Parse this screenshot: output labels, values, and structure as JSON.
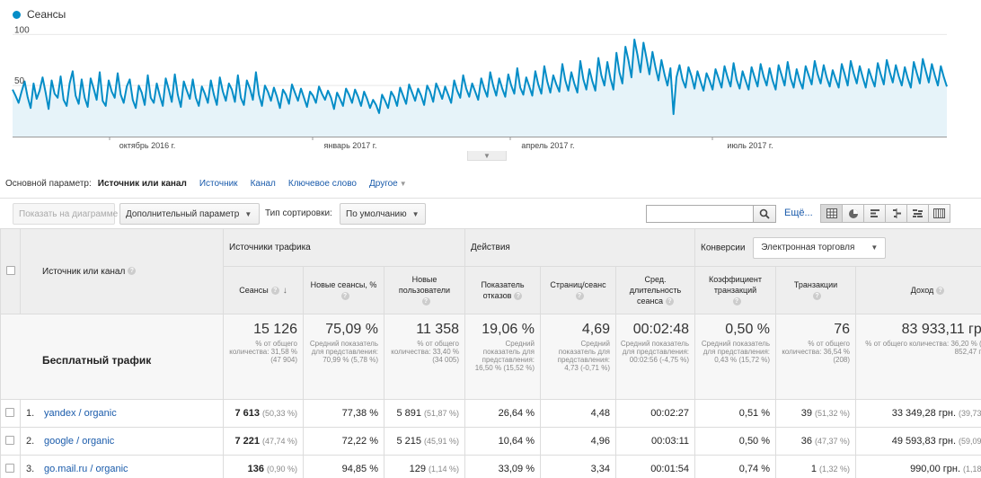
{
  "chart": {
    "legend": "Сеансы",
    "y_ticks": [
      "100",
      "50"
    ],
    "x_labels": [
      "октябрь 2016 г.",
      "январь 2017 г.",
      "апрель 2017 г.",
      "июль 2017 г."
    ],
    "colors": {
      "line": "#058dc7",
      "fill": "#e6f3f9"
    }
  },
  "chart_data": {
    "type": "area",
    "series": [
      {
        "name": "Сеансы",
        "values": [
          46,
          40,
          33,
          44,
          54,
          39,
          28,
          52,
          37,
          45,
          58,
          43,
          27,
          55,
          42,
          38,
          59,
          36,
          30,
          52,
          64,
          40,
          32,
          56,
          38,
          29,
          57,
          47,
          36,
          63,
          35,
          30,
          55,
          44,
          38,
          62,
          41,
          33,
          49,
          56,
          36,
          28,
          50,
          43,
          31,
          60,
          38,
          33,
          52,
          40,
          30,
          57,
          46,
          34,
          61,
          41,
          29,
          54,
          45,
          37,
          56,
          38,
          30,
          49,
          42,
          33,
          55,
          41,
          31,
          58,
          44,
          35,
          52,
          46,
          34,
          60,
          38,
          31,
          55,
          47,
          36,
          63,
          41,
          30,
          50,
          44,
          35,
          48,
          39,
          28,
          46,
          41,
          32,
          51,
          43,
          35,
          47,
          38,
          29,
          44,
          40,
          33,
          49,
          42,
          36,
          45,
          38,
          27,
          43,
          37,
          30,
          47,
          41,
          33,
          46,
          39,
          30,
          44,
          37,
          28,
          36,
          31,
          23,
          41,
          35,
          28,
          44,
          39,
          30,
          48,
          40,
          32,
          51,
          43,
          35,
          47,
          40,
          31,
          50,
          44,
          34,
          52,
          45,
          37,
          49,
          41,
          33,
          55,
          45,
          38,
          60,
          47,
          39,
          52,
          44,
          36,
          57,
          47,
          39,
          63,
          50,
          40,
          57,
          47,
          39,
          61,
          50,
          42,
          67,
          48,
          41,
          58,
          49,
          40,
          64,
          51,
          42,
          69,
          54,
          43,
          60,
          51,
          44,
          71,
          55,
          45,
          63,
          52,
          43,
          74,
          56,
          46,
          66,
          54,
          45,
          77,
          60,
          50,
          73,
          57,
          46,
          82,
          63,
          52,
          88,
          75,
          58,
          95,
          80,
          63,
          92,
          77,
          61,
          83,
          68,
          55,
          75,
          61,
          50,
          67,
          22,
          58,
          70,
          56,
          48,
          68,
          59,
          47,
          64,
          54,
          45,
          62,
          55,
          46,
          66,
          57,
          48,
          69,
          58,
          49,
          72,
          56,
          47,
          64,
          55,
          46,
          68,
          58,
          49,
          71,
          59,
          50,
          67,
          55,
          46,
          70,
          60,
          50,
          73,
          57,
          48,
          66,
          55,
          47,
          69,
          60,
          51,
          74,
          61,
          52,
          70,
          58,
          49,
          65,
          56,
          48,
          71,
          61,
          50,
          74,
          62,
          52,
          69,
          58,
          48,
          66,
          57,
          49,
          72,
          61,
          51,
          75,
          63,
          53,
          70,
          59,
          50,
          68,
          57,
          48,
          73,
          62,
          52,
          76,
          64,
          53,
          71,
          60,
          50,
          69,
          58,
          49
        ]
      }
    ],
    "ylim": [
      0,
      110
    ],
    "x_labels": [
      "октябрь 2016 г.",
      "январь 2017 г.",
      "апрель 2017 г.",
      "июль 2017 г."
    ]
  },
  "dimensions": {
    "label": "Основной параметр:",
    "active": "Источник или канал",
    "links": [
      "Источник",
      "Канал",
      "Ключевое слово"
    ],
    "other": "Другое"
  },
  "toolbar": {
    "plot_rows": "Показать на диаграмме",
    "secondary_dim": "Дополнительный параметр",
    "sort_label": "Тип сортировки:",
    "sort_value": "По умолчанию",
    "search_value": "",
    "more": "Ещё...",
    "view_icons": [
      "table-view-icon",
      "pie-view-icon",
      "performance-view-icon",
      "comparison-view-icon",
      "term-cloud-view-icon",
      "pivot-view-icon"
    ]
  },
  "table": {
    "dim_header": "Источник или канал",
    "groups": {
      "acquisition": "Источники трафика",
      "behavior": "Действия",
      "conversions": "Конверсии",
      "conversions_select": "Электронная торговля"
    },
    "columns": [
      "Сеансы",
      "Новые сеансы, %",
      "Новые пользователи",
      "Показатель отказов",
      "Страниц/сеанс",
      "Сред. длительность сеанса",
      "Коэффициент транзакций",
      "Транзакции",
      "Доход"
    ],
    "totals": {
      "label": "Бесплатный трафик",
      "cells": [
        {
          "big": "15 126",
          "small": "% от общего количества: 31,58 % (47 904)"
        },
        {
          "big": "75,09 %",
          "small": "Средний показатель для представления: 70,99 % (5,78 %)"
        },
        {
          "big": "11 358",
          "small": "% от общего количества: 33,40 % (34 005)"
        },
        {
          "big": "19,06 %",
          "small": "Средний показатель для представления: 16,50 % (15,52 %)"
        },
        {
          "big": "4,69",
          "small": "Средний показатель для представления: 4,73 (-0,71 %)"
        },
        {
          "big": "00:02:48",
          "small": "Средний показатель для представления: 00:02:56 (-4,75 %)"
        },
        {
          "big": "0,50 %",
          "small": "Средний показатель для представления: 0,43 % (15,72 %)"
        },
        {
          "big": "76",
          "small": "% от общего количества: 36,54 % (208)"
        },
        {
          "big": "83 933,11 грн.",
          "small": "% от общего количества: 36,20 % (231 852,47 грн.)"
        }
      ]
    },
    "rows": [
      {
        "idx": "1.",
        "source": "yandex / organic",
        "sessions": "7 613",
        "sessions_pct": "(50,33 %)",
        "new_pct": "77,38 %",
        "new_users": "5 891",
        "new_users_pct": "(51,87 %)",
        "bounce": "26,64 %",
        "pages": "4,48",
        "duration": "00:02:27",
        "conv": "0,51 %",
        "trans": "39",
        "trans_pct": "(51,32 %)",
        "revenue": "33 349,28 грн.",
        "revenue_pct": "(39,73 %)"
      },
      {
        "idx": "2.",
        "source": "google / organic",
        "sessions": "7 221",
        "sessions_pct": "(47,74 %)",
        "new_pct": "72,22 %",
        "new_users": "5 215",
        "new_users_pct": "(45,91 %)",
        "bounce": "10,64 %",
        "pages": "4,96",
        "duration": "00:03:11",
        "conv": "0,50 %",
        "trans": "36",
        "trans_pct": "(47,37 %)",
        "revenue": "49 593,83 грн.",
        "revenue_pct": "(59,09 %)"
      },
      {
        "idx": "3.",
        "source": "go.mail.ru / organic",
        "sessions": "136",
        "sessions_pct": "(0,90 %)",
        "new_pct": "94,85 %",
        "new_users": "129",
        "new_users_pct": "(1,14 %)",
        "bounce": "33,09 %",
        "pages": "3,34",
        "duration": "00:01:54",
        "conv": "0,74 %",
        "trans": "1",
        "trans_pct": "(1,32 %)",
        "revenue": "990,00 грн.",
        "revenue_pct": "(1,18 %)"
      }
    ]
  }
}
